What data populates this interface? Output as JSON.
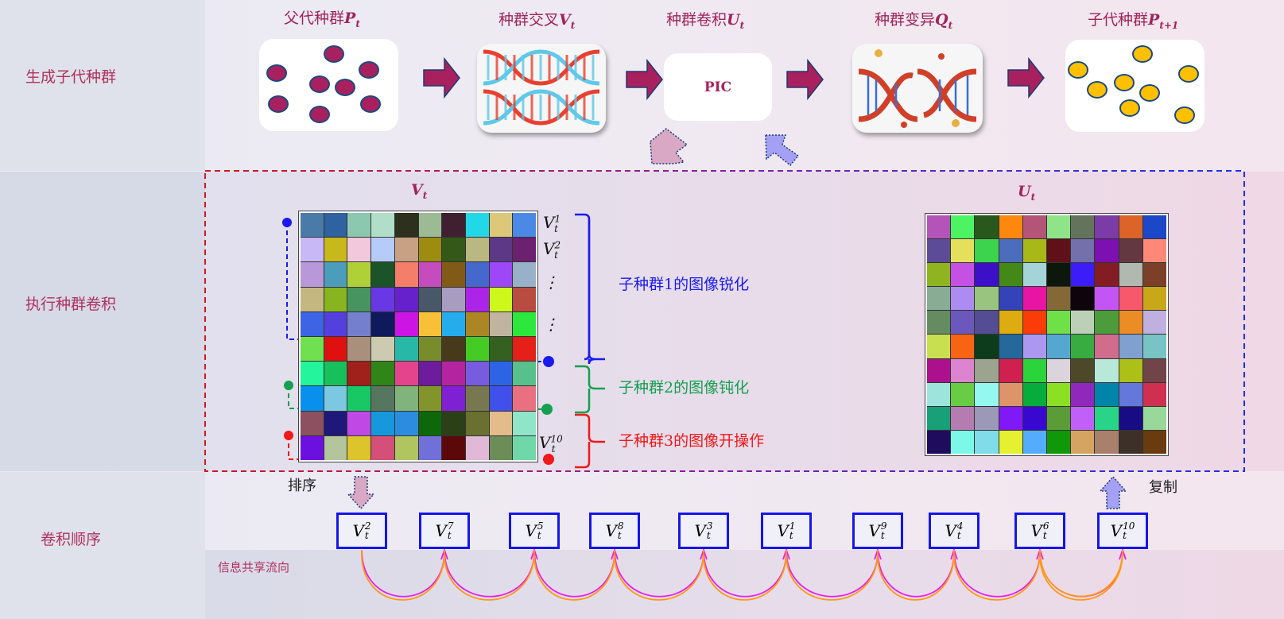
{
  "rows": {
    "generate": "生成子代种群",
    "convolve": "执行种群卷积",
    "order": "卷积顺序"
  },
  "stages": [
    {
      "label": "父代种群",
      "symbol": "P",
      "sub": "t"
    },
    {
      "label": "种群交叉",
      "symbol": "V",
      "sub": "t"
    },
    {
      "label": "种群卷积",
      "symbol": "U",
      "sub": "t"
    },
    {
      "label": "种群变异",
      "symbol": "Q",
      "sub": "t"
    },
    {
      "label": "子代种群",
      "symbol": "P",
      "sub": "t+1"
    }
  ],
  "pic_label": "PIC",
  "colors": {
    "parent_dot": "#a8215e",
    "child_dot": "#ffc000",
    "arrow": "#a8215e",
    "magenta_arc": "#e81ee8",
    "orange_arc": "#ff9a10",
    "box_border": "#1515ee"
  },
  "matrix_v": {
    "symbol": "V",
    "sub": "t",
    "row_labels": [
      {
        "sup": "1",
        "sub": "t"
      },
      {
        "sup": "2",
        "sub": "t"
      },
      {
        "text": "⋮"
      },
      {
        "text": "⋮"
      },
      {
        "sup": "10",
        "sub": "t"
      }
    ],
    "cells": [
      "#4a7aa8",
      "#2f62a0",
      "#8cc8b0",
      "#b0dec8",
      "#2c301c",
      "#9cba94",
      "#402030",
      "#22d8e6",
      "#dcc878",
      "#4a8ae6",
      "#c8b8f6",
      "#c8b81c",
      "#f2c8dc",
      "#b6ccf8",
      "#c8a084",
      "#9c8c10",
      "#345818",
      "#b8b880",
      "#5c3886",
      "#6c2070",
      "#b898d8",
      "#4c9cbc",
      "#b0d038",
      "#1a5428",
      "#f47e6a",
      "#c44cbc",
      "#825a18",
      "#4468cc",
      "#9c48f8",
      "#98b0c8",
      "#c4b880",
      "#88b420",
      "#489460",
      "#6838e4",
      "#6620cc",
      "#485868",
      "#a89cc0",
      "#ac24e8",
      "#ccf81c",
      "#b84c40",
      "#3c64e4",
      "#5440dc",
      "#7480cc",
      "#0e1a5c",
      "#cc14e4",
      "#f8c038",
      "#24acec",
      "#ac8624",
      "#c0b4a0",
      "#2ce83c",
      "#70e050",
      "#e01010",
      "#a8907c",
      "#cccab0",
      "#28b8a8",
      "#788c2c",
      "#463a1a",
      "#44cc24",
      "#346020",
      "#e42018",
      "#24f49c",
      "#18c05c",
      "#a0201c",
      "#308418",
      "#e4448c",
      "#6c1c9c",
      "#b424a0",
      "#785ce0",
      "#2c64e4",
      "#58c08c",
      "#0890ec",
      "#7cc8e0",
      "#18c864",
      "#567660",
      "#80b47c",
      "#84942c",
      "#8020d4",
      "#787850",
      "#4050e8",
      "#e87080",
      "#8c5060",
      "#201878",
      "#c048e4",
      "#1898dc",
      "#2c8ce0",
      "#0c6808",
      "#2c4018",
      "#6a7030",
      "#e4bc8c",
      "#90e4c8",
      "#6c10e0",
      "#b4c49c",
      "#dcc42c",
      "#d45078",
      "#b0c460",
      "#7070d8",
      "#5c0808",
      "#e0b8d8",
      "#6c8c58",
      "#70d8a8"
    ]
  },
  "matrix_u": {
    "symbol": "U",
    "sub": "t",
    "cells": [
      "#b454b8",
      "#4cf464",
      "#28581c",
      "#fc8810",
      "#b45478",
      "#90e488",
      "#64745c",
      "#7c3ca8",
      "#dc6428",
      "#1a48c8",
      "#5c4c98",
      "#e4e05c",
      "#3cd44c",
      "#4c6cbc",
      "#a8b818",
      "#601018",
      "#7470ac",
      "#7c10b0",
      "#643840",
      "#ff8878",
      "#90b420",
      "#c450e4",
      "#3c10c8",
      "#448818",
      "#a4d4d8",
      "#0c180c",
      "#3c1cf8",
      "#841c24",
      "#b0b8b0",
      "#7a4028",
      "#88ac94",
      "#ac8cf0",
      "#98c480",
      "#3444b8",
      "#e814a4",
      "#846838",
      "#10040c",
      "#c454f4",
      "#f8586c",
      "#c8a818",
      "#648c60",
      "#6c58bc",
      "#544c94",
      "#dcac10",
      "#fc3c08",
      "#70e048",
      "#bcd0b8",
      "#4c9c3c",
      "#ec8c24",
      "#c0b0e0",
      "#c8e050",
      "#f86414",
      "#0c3c1c",
      "#24689c",
      "#ac98f0",
      "#54a8d0",
      "#38ac40",
      "#d06c8c",
      "#80a0d0",
      "#78c4c4",
      "#ac108c",
      "#dc84d0",
      "#9ca490",
      "#d02050",
      "#2cd43c",
      "#dcd4dc",
      "#4c4828",
      "#b8e8d8",
      "#acc018",
      "#704448",
      "#9ce4dc",
      "#68cc44",
      "#94f8f0",
      "#dc9468",
      "#08ac3c",
      "#8ce024",
      "#9028bc",
      "#0084a8",
      "#6478dc",
      "#d03050",
      "#18a078",
      "#b47cb0",
      "#9c98b8",
      "#8018f8",
      "#3808d0",
      "#5c9c38",
      "#c060f8",
      "#28d488",
      "#180c84",
      "#98d898",
      "#200c5c",
      "#7cf8e8",
      "#80dce8",
      "#e4f030",
      "#54acfc",
      "#109808",
      "#d4a460",
      "#a8806c",
      "#3c3028",
      "#6a3a10"
    ]
  },
  "groups": [
    {
      "label": "子种群1的图像锐化",
      "color": "#1a1aee"
    },
    {
      "label": "子种群2的图像钝化",
      "color": "#14a050"
    },
    {
      "label": "子种群3的图像开操作",
      "color": "#f01818"
    }
  ],
  "sort_label": "排序",
  "copy_label": "复制",
  "flow_label": "信息共享流向",
  "order": [
    {
      "symbol": "V",
      "sup": "2",
      "sub": "t"
    },
    {
      "symbol": "V",
      "sup": "7",
      "sub": "t"
    },
    {
      "symbol": "V",
      "sup": "5",
      "sub": "t"
    },
    {
      "symbol": "V",
      "sup": "8",
      "sub": "t"
    },
    {
      "symbol": "V",
      "sup": "3",
      "sub": "t"
    },
    {
      "symbol": "V",
      "sup": "1",
      "sub": "t"
    },
    {
      "symbol": "V",
      "sup": "9",
      "sub": "t"
    },
    {
      "symbol": "V",
      "sup": "4",
      "sub": "t"
    },
    {
      "symbol": "V",
      "sup": "6",
      "sub": "t"
    },
    {
      "symbol": "V",
      "sup": "10",
      "sub": "t"
    }
  ]
}
